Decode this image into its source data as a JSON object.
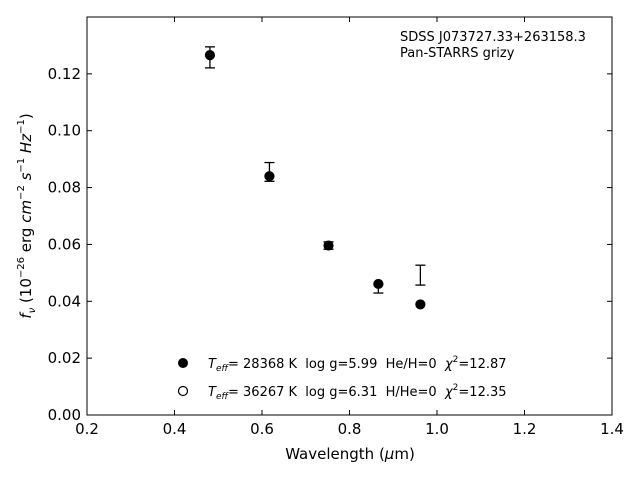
{
  "chart_data": {
    "type": "scatter",
    "title": "",
    "xlabel": {
      "main": "Wavelength (",
      "mu": "μ",
      "unit": "m)"
    },
    "ylabel": {
      "f": "f",
      "nu": "ν",
      "rest": " (10",
      "exp1": "−26",
      "erg": " erg ",
      "cm": "cm",
      "exp2": "−2",
      "s": " s",
      "exp3": "−1",
      "hz": " Hz",
      "exp4": "−1",
      "close": ")"
    },
    "xlim": [
      0.2,
      1.4
    ],
    "ylim": [
      0.0,
      0.14
    ],
    "xticks": [
      0.2,
      0.4,
      0.6,
      0.8,
      1.0,
      1.2,
      1.4
    ],
    "xtick_labels": [
      "0.2",
      "0.4",
      "0.6",
      "0.8",
      "1.0",
      "1.2",
      "1.4"
    ],
    "yticks": [
      0.0,
      0.02,
      0.04,
      0.06,
      0.08,
      0.1,
      0.12
    ],
    "ytick_labels": [
      "0.00",
      "0.02",
      "0.04",
      "0.06",
      "0.08",
      "0.10",
      "0.12"
    ],
    "grid": false,
    "annotation": [
      "SDSS J073727.33+263158.3",
      "Pan-STARRS grizy"
    ],
    "observed": {
      "x": [
        0.481,
        0.617,
        0.752,
        0.866,
        0.962
      ],
      "y": [
        0.1258,
        0.0855,
        0.0596,
        0.0445,
        0.0492
      ],
      "yerr": [
        0.0037,
        0.0033,
        0.0013,
        0.0016,
        0.0035
      ]
    },
    "series": [
      {
        "marker": "filled-circle",
        "color": "#000000",
        "x": [
          0.481,
          0.617,
          0.752,
          0.866,
          0.962
        ],
        "y": [
          0.1266,
          0.084,
          0.0596,
          0.0461,
          0.0389
        ],
        "legend": {
          "T": "T",
          "eff": "eff",
          "text": "= 28368 K  log g=5.99  He/H=0  ",
          "chi": "χ",
          "two": "2",
          "val": "=12.87"
        }
      },
      {
        "marker": "open-circle",
        "color": "#000000",
        "x": [],
        "y": [],
        "legend": {
          "T": "T",
          "eff": "eff",
          "text": "= 36267 K  log g=6.31  H/He=0  ",
          "chi": "χ",
          "two": "2",
          "val": "=12.35"
        }
      }
    ],
    "legend_position": "lower-center"
  }
}
